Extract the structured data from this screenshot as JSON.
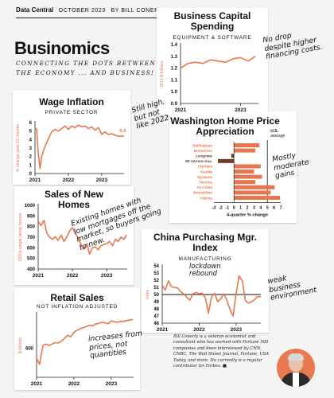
{
  "header": {
    "section": "Data Central",
    "date": "OCTOBER 2023",
    "byline": "BY BILL CONERLY",
    "brand": "Businomics",
    "tagline": "CONNECTING THE DOTS BETWEEN THE ECONOMY ... AND BUSINESS!"
  },
  "colors": {
    "accent": "#e8774f",
    "neg": "#6b3a28",
    "ink": "#111111",
    "axis": "#222222"
  },
  "annotations": {
    "capital": "No drop\ndespite higher\nfinancing costs.",
    "wage": "Still high,\nbut not\nlike 2022.",
    "washington": "Mostly\nmoderate\ngains",
    "homes": "Existing homes with\nlow mortgages off the\nmarket, so buyers going\nto new.",
    "china_lockdown": "lockdown\nrebound",
    "china_weak": "weak\nbusiness\nenvironment",
    "retail": "increases from\nprices, not\nquantities"
  },
  "bio": {
    "text": "Bill Conerly is a veteran economist and consultant who has worked with Fortune 500 companies and been interviewed by CNN, CNBC, The Wall Street Journal, Fortune, USA Today, and more. He currently is a regular contributor for Forbes.",
    "mark": "■"
  },
  "chart_data": [
    {
      "id": "capital",
      "type": "line",
      "title": "Business Capital Spending",
      "subtitle": "EQUIPMENT & SOFTWARE",
      "ylabel": "2012 $ trillions",
      "ylim": [
        0.9,
        1.4
      ],
      "yticks": [
        "0.9",
        "1.0",
        "1.1",
        "1.2",
        "1.3",
        "1.4"
      ],
      "xlim": [
        2021.0,
        2023.6
      ],
      "xticks": [
        "2021",
        "2023"
      ],
      "x": [
        2021.0,
        2021.25,
        2021.5,
        2021.75,
        2022.0,
        2022.25,
        2022.5,
        2022.75,
        2023.0,
        2023.25,
        2023.5
      ],
      "values": [
        1.2,
        1.24,
        1.25,
        1.24,
        1.27,
        1.26,
        1.25,
        1.28,
        1.29,
        1.26,
        1.3
      ]
    },
    {
      "id": "wage",
      "type": "line",
      "title": "Wage Inflation",
      "subtitle": "PRIVATE SECTOR",
      "ylabel": "% change year 12 months",
      "ylim": [
        0,
        6
      ],
      "yticks": [
        "0",
        "1",
        "2",
        "3",
        "4",
        "5",
        "6"
      ],
      "xlim": [
        2021.0,
        2023.67
      ],
      "xticks": [
        "2021",
        "2022",
        "2023"
      ],
      "data_label": "4.4",
      "x": [
        2021.0,
        2021.05,
        2021.1,
        2021.15,
        2021.2,
        2021.3,
        2021.4,
        2021.5,
        2021.6,
        2021.7,
        2021.8,
        2021.9,
        2022.0,
        2022.1,
        2022.2,
        2022.3,
        2022.4,
        2022.5,
        2022.6,
        2022.7,
        2022.8,
        2022.9,
        2023.0,
        2023.1,
        2023.2,
        2023.3,
        2023.4,
        2023.5,
        2023.67
      ],
      "values": [
        5.4,
        5.2,
        2.3,
        0.6,
        2.0,
        3.2,
        4.1,
        4.9,
        5.2,
        5.0,
        5.3,
        5.6,
        5.2,
        5.6,
        5.4,
        5.7,
        5.5,
        5.6,
        5.3,
        5.5,
        5.1,
        5.4,
        4.6,
        4.9,
        4.6,
        4.7,
        4.5,
        4.4,
        4.4
      ]
    },
    {
      "id": "washington",
      "type": "bar",
      "orientation": "horizontal",
      "title": "Washington Home Price Appreciation",
      "xlabel": "4-quarter % change",
      "avg_label": "U.S. average",
      "avg_value": 5,
      "xlim": [
        -3,
        7
      ],
      "xticks": [
        "-3",
        "-2",
        "-1",
        "0",
        "1",
        "2",
        "3",
        "4",
        "5",
        "6",
        "7"
      ],
      "categories": [
        "Bellingham",
        "Bremerton",
        "Longview",
        "Mt Vernon-Ana.",
        "Olympia",
        "Seattle",
        "Spokane",
        "Tacoma",
        "Tri-Cities",
        "Wenatchee",
        "Yakima"
      ],
      "values": [
        3.8,
        3.2,
        -0.4,
        -2.4,
        4.0,
        3.0,
        4.2,
        3.2,
        6.1,
        5.5,
        6.9
      ]
    },
    {
      "id": "homes",
      "type": "line",
      "title": "Sales of New Homes",
      "ylabel": "1000s single family homes",
      "ylim": [
        400,
        1000
      ],
      "yticks": [
        "400",
        "500",
        "600",
        "700",
        "800",
        "900",
        "1000"
      ],
      "xlim": [
        2021.0,
        2023.6
      ],
      "xticks": [
        "2021",
        "2022",
        "2023"
      ],
      "x": [
        2021.0,
        2021.08,
        2021.17,
        2021.25,
        2021.33,
        2021.42,
        2021.5,
        2021.58,
        2021.67,
        2021.75,
        2021.83,
        2021.92,
        2022.0,
        2022.08,
        2022.17,
        2022.25,
        2022.33,
        2022.42,
        2022.5,
        2022.58,
        2022.67,
        2022.75,
        2022.83,
        2022.92,
        2023.0,
        2023.08,
        2023.17,
        2023.25,
        2023.33,
        2023.42,
        2023.5,
        2023.58
      ],
      "values": [
        850,
        810,
        860,
        740,
        700,
        680,
        705,
        670,
        720,
        660,
        700,
        760,
        790,
        740,
        690,
        630,
        590,
        640,
        540,
        600,
        610,
        580,
        620,
        630,
        640,
        660,
        620,
        680,
        660,
        700,
        680,
        720
      ]
    },
    {
      "id": "china",
      "type": "line",
      "title": "China Purchasing Mgr. Index",
      "subtitle": "MANUFACTURING",
      "ylabel": "index",
      "ylim": [
        46,
        54
      ],
      "yticks": [
        "46",
        "47",
        "48",
        "49",
        "50",
        "51",
        "52",
        "53",
        "54"
      ],
      "reference_line": 50,
      "xlim": [
        2021.0,
        2023.67
      ],
      "xticks": [
        "2021",
        "2022",
        "2023"
      ],
      "x": [
        2021.0,
        2021.08,
        2021.17,
        2021.25,
        2021.33,
        2021.42,
        2021.5,
        2021.58,
        2021.67,
        2021.75,
        2021.83,
        2021.92,
        2022.0,
        2022.08,
        2022.17,
        2022.25,
        2022.33,
        2022.42,
        2022.5,
        2022.58,
        2022.67,
        2022.75,
        2022.83,
        2022.92,
        2023.0,
        2023.08,
        2023.17,
        2023.25,
        2023.33,
        2023.42,
        2023.5,
        2023.58,
        2023.67
      ],
      "values": [
        51.3,
        50.6,
        51.9,
        51.1,
        51.0,
        50.9,
        50.4,
        50.1,
        49.6,
        49.2,
        50.1,
        50.3,
        50.1,
        50.2,
        49.5,
        47.4,
        49.6,
        50.2,
        49.0,
        49.4,
        50.1,
        49.2,
        48.0,
        47.0,
        50.1,
        52.6,
        51.9,
        49.2,
        48.8,
        49.0,
        49.3,
        49.7,
        49.7
      ]
    },
    {
      "id": "retail",
      "type": "line",
      "title": "Retail Sales",
      "subtitle": "NOT INFLATION ADJUSTED",
      "ylabel": "$ billions",
      "ylim": [
        500,
        720
      ],
      "yticks": [
        "600"
      ],
      "ytick_values": [
        600
      ],
      "xlim": [
        2021.0,
        2023.6
      ],
      "xticks": [
        "2021",
        "2022",
        "2023"
      ],
      "x": [
        2021.0,
        2021.08,
        2021.17,
        2021.25,
        2021.33,
        2021.42,
        2021.5,
        2021.58,
        2021.67,
        2021.75,
        2021.83,
        2021.92,
        2022.0,
        2022.08,
        2022.17,
        2022.25,
        2022.33,
        2022.42,
        2022.5,
        2022.58,
        2022.67,
        2022.75,
        2022.83,
        2022.92,
        2023.0,
        2023.08,
        2023.17,
        2023.25,
        2023.33,
        2023.42,
        2023.5,
        2023.58
      ],
      "values": [
        565,
        545,
        610,
        615,
        610,
        615,
        620,
        618,
        625,
        635,
        645,
        640,
        655,
        662,
        668,
        672,
        675,
        680,
        678,
        684,
        686,
        690,
        688,
        685,
        695,
        692,
        690,
        694,
        693,
        696,
        698,
        700
      ]
    }
  ]
}
